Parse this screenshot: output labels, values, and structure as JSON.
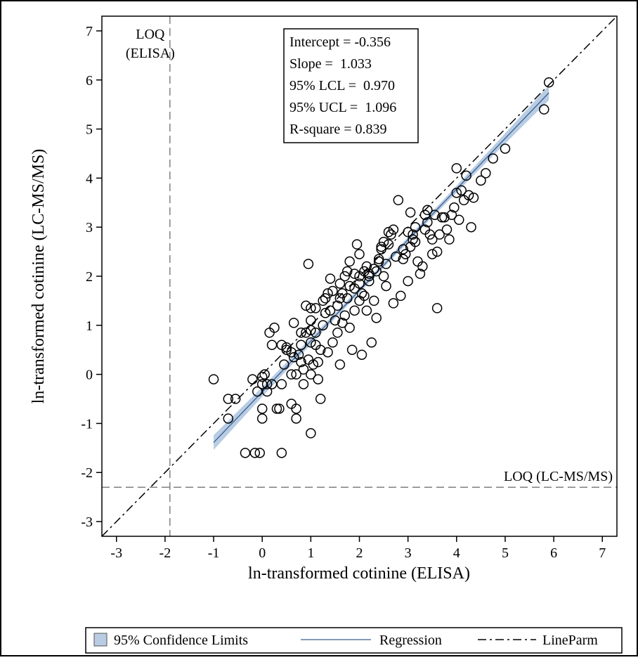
{
  "chart_data": {
    "type": "scatter",
    "xlabel": "ln-transformed cotinine (ELISA)",
    "ylabel": "ln-transformed cotinine (LC-MS/MS)",
    "xlim": [
      -3.3,
      7.3
    ],
    "ylim": [
      -3.3,
      7.3
    ],
    "x_ticks": [
      "-3",
      "-2",
      "-1",
      "0",
      "1",
      "2",
      "3",
      "4",
      "5",
      "6",
      "7"
    ],
    "y_ticks": [
      "-3",
      "-2",
      "-1",
      "0",
      "1",
      "2",
      "3",
      "4",
      "5",
      "6",
      "7"
    ],
    "grid": false,
    "stats_box": [
      "Intercept = -0.356",
      "Slope =  1.033",
      "95% LCL =  0.970",
      "95% UCL =  1.096",
      "R-square = 0.839"
    ],
    "reference_lines": [
      {
        "axis": "x",
        "value": -1.9,
        "label_lines": [
          "LOQ",
          "(ELISA)"
        ]
      },
      {
        "axis": "y",
        "value": -2.3,
        "label_lines": [
          "LOQ (LC-MS/MS)"
        ]
      }
    ],
    "identity_line": {
      "intercept": 0,
      "slope": 1
    },
    "regression": {
      "intercept": -0.356,
      "slope": 1.033,
      "x_range": [
        -1.0,
        5.9
      ]
    },
    "confidence_band": {
      "lower_halfwidth_end": 0.15,
      "upper_halfwidth_end": 0.15,
      "center_halfwidth": 0.05
    },
    "legend": {
      "placement": "bottom",
      "entries": [
        "95% Confidence Limits",
        "Regression",
        "LineParm"
      ]
    },
    "colors": {
      "band": "#b8cce4",
      "regression": "#3b5f8c",
      "points": "#000000",
      "reference": "#808080"
    },
    "points": [
      [
        -1.0,
        -0.1
      ],
      [
        -0.7,
        -0.5
      ],
      [
        -0.7,
        -0.9
      ],
      [
        -0.55,
        -0.5
      ],
      [
        -0.2,
        -0.1
      ],
      [
        -0.1,
        -0.35
      ],
      [
        0.0,
        -0.2
      ],
      [
        0.0,
        -0.05
      ],
      [
        0.0,
        -0.7
      ],
      [
        0.0,
        -0.9
      ],
      [
        0.05,
        0.0
      ],
      [
        0.1,
        -0.2
      ],
      [
        0.1,
        -0.35
      ],
      [
        0.15,
        0.85
      ],
      [
        0.2,
        -0.2
      ],
      [
        0.2,
        0.6
      ],
      [
        0.25,
        0.95
      ],
      [
        0.3,
        -0.7
      ],
      [
        0.35,
        -0.7
      ],
      [
        0.4,
        -0.2
      ],
      [
        0.4,
        0.6
      ],
      [
        0.45,
        0.2
      ],
      [
        0.5,
        0.5
      ],
      [
        0.6,
        0.45
      ],
      [
        0.6,
        0.0
      ],
      [
        0.65,
        1.05
      ],
      [
        0.7,
        0.0
      ],
      [
        0.7,
        -0.7
      ],
      [
        0.7,
        -0.9
      ],
      [
        0.75,
        0.4
      ],
      [
        0.8,
        0.25
      ],
      [
        0.8,
        0.6
      ],
      [
        0.85,
        -0.2
      ],
      [
        0.85,
        0.1
      ],
      [
        0.9,
        1.4
      ],
      [
        0.9,
        0.85
      ],
      [
        0.95,
        0.3
      ],
      [
        1.0,
        0.0
      ],
      [
        1.0,
        0.65
      ],
      [
        1.0,
        0.9
      ],
      [
        1.0,
        1.1
      ],
      [
        1.0,
        -1.2
      ],
      [
        1.05,
        0.2
      ],
      [
        1.1,
        0.6
      ],
      [
        1.1,
        0.85
      ],
      [
        1.1,
        1.35
      ],
      [
        1.15,
        -0.1
      ],
      [
        1.15,
        0.25
      ],
      [
        1.2,
        -0.5
      ],
      [
        1.2,
        0.5
      ],
      [
        1.25,
        1.0
      ],
      [
        1.25,
        1.5
      ],
      [
        1.3,
        1.25
      ],
      [
        1.35,
        0.45
      ],
      [
        1.35,
        1.65
      ],
      [
        1.4,
        1.3
      ],
      [
        1.45,
        0.65
      ],
      [
        1.5,
        1.1
      ],
      [
        1.55,
        1.4
      ],
      [
        1.55,
        0.85
      ],
      [
        1.6,
        0.2
      ],
      [
        1.6,
        1.55
      ],
      [
        1.65,
        1.65
      ],
      [
        1.7,
        2.0
      ],
      [
        1.7,
        1.2
      ],
      [
        1.75,
        1.55
      ],
      [
        1.8,
        0.95
      ],
      [
        1.8,
        1.8
      ],
      [
        1.85,
        0.5
      ],
      [
        1.9,
        1.75
      ],
      [
        1.9,
        1.3
      ],
      [
        1.95,
        2.65
      ],
      [
        2.0,
        1.5
      ],
      [
        2.0,
        1.85
      ],
      [
        2.05,
        1.65
      ],
      [
        2.05,
        0.4
      ],
      [
        2.1,
        2.1
      ],
      [
        2.1,
        1.6
      ],
      [
        2.15,
        1.3
      ],
      [
        2.2,
        2.0
      ],
      [
        2.2,
        2.05
      ],
      [
        2.25,
        0.65
      ],
      [
        2.3,
        2.15
      ],
      [
        2.3,
        1.5
      ],
      [
        2.35,
        2.1
      ],
      [
        2.35,
        1.15
      ],
      [
        2.4,
        2.35
      ],
      [
        2.45,
        2.55
      ],
      [
        2.5,
        2.0
      ],
      [
        2.5,
        2.7
      ],
      [
        2.55,
        1.8
      ],
      [
        2.6,
        2.65
      ],
      [
        2.65,
        2.85
      ],
      [
        2.7,
        1.45
      ],
      [
        2.75,
        2.4
      ],
      [
        2.8,
        3.55
      ],
      [
        2.85,
        1.6
      ],
      [
        2.9,
        2.35
      ],
      [
        2.95,
        2.45
      ],
      [
        3.0,
        2.9
      ],
      [
        3.0,
        1.9
      ],
      [
        3.05,
        2.6
      ],
      [
        3.1,
        2.75
      ],
      [
        3.15,
        2.7
      ],
      [
        3.15,
        3.0
      ],
      [
        3.2,
        2.3
      ],
      [
        3.25,
        2.05
      ],
      [
        3.3,
        2.2
      ],
      [
        3.35,
        2.95
      ],
      [
        3.4,
        3.1
      ],
      [
        3.45,
        2.85
      ],
      [
        3.5,
        2.45
      ],
      [
        3.5,
        2.75
      ],
      [
        3.55,
        3.25
      ],
      [
        3.6,
        1.35
      ],
      [
        3.6,
        2.5
      ],
      [
        3.65,
        2.85
      ],
      [
        3.7,
        3.2
      ],
      [
        3.75,
        3.2
      ],
      [
        3.8,
        2.95
      ],
      [
        3.85,
        2.75
      ],
      [
        3.9,
        3.25
      ],
      [
        3.95,
        3.4
      ],
      [
        4.0,
        4.2
      ],
      [
        4.0,
        3.7
      ],
      [
        4.05,
        3.15
      ],
      [
        4.1,
        3.75
      ],
      [
        4.15,
        3.55
      ],
      [
        4.2,
        4.05
      ],
      [
        4.25,
        3.65
      ],
      [
        4.3,
        3.0
      ],
      [
        4.35,
        3.6
      ],
      [
        4.5,
        3.95
      ],
      [
        4.6,
        4.1
      ],
      [
        4.75,
        4.4
      ],
      [
        5.0,
        4.6
      ],
      [
        5.8,
        5.4
      ],
      [
        5.9,
        5.95
      ],
      [
        -0.35,
        -1.6
      ],
      [
        -0.15,
        -1.6
      ],
      [
        -0.05,
        -1.6
      ],
      [
        0.4,
        -1.6
      ],
      [
        0.6,
        -0.6
      ],
      [
        1.8,
        2.3
      ],
      [
        2.4,
        2.3
      ],
      [
        2.0,
        2.0
      ],
      [
        1.3,
        1.55
      ],
      [
        0.5,
        0.55
      ],
      [
        0.95,
        2.25
      ],
      [
        1.9,
        2.05
      ],
      [
        2.6,
        2.9
      ],
      [
        3.35,
        3.25
      ],
      [
        2.7,
        2.95
      ],
      [
        1.6,
        1.85
      ],
      [
        2.2,
        1.9
      ],
      [
        1.4,
        1.95
      ],
      [
        0.8,
        0.85
      ],
      [
        3.05,
        3.3
      ],
      [
        3.4,
        3.35
      ],
      [
        1.65,
        1.05
      ],
      [
        2.0,
        2.45
      ],
      [
        2.55,
        2.25
      ],
      [
        3.1,
        2.85
      ],
      [
        1.0,
        1.35
      ],
      [
        1.45,
        1.7
      ],
      [
        2.15,
        2.2
      ],
      [
        0.65,
        0.35
      ],
      [
        1.75,
        2.1
      ],
      [
        2.45,
        2.6
      ],
      [
        2.9,
        2.55
      ]
    ]
  }
}
